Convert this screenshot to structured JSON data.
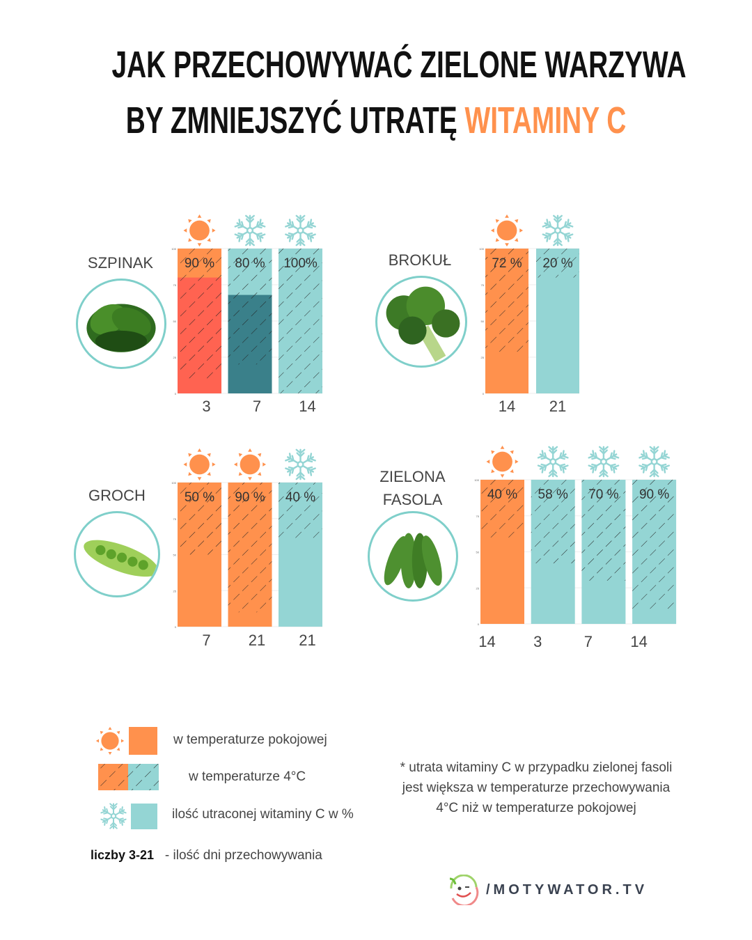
{
  "title": {
    "line1": "JAK PRZECHOWYWAĆ ZIELONE WARZYWA",
    "line2_prefix": "BY ZMNIEJSZYĆ UTRATĘ ",
    "line2_accent": "WITAMINY C"
  },
  "colors": {
    "room_temp": "#ff914d",
    "cold": "#94d5d4",
    "accent": "#ff914d",
    "spinach_room_dark": "#ff6351",
    "spinach_cold_dark": "#3a808a",
    "photo_border": "#7fcfca"
  },
  "chart_data": [
    {
      "type": "bar",
      "name": "SZPINAK",
      "y_ticks": [
        "0",
        "25",
        "50",
        "75",
        "100"
      ],
      "ylim": [
        0,
        100
      ],
      "bars": [
        {
          "days": "3",
          "icon": "sun-icon",
          "storage": "room",
          "loss_label": "90 %",
          "loss": 90,
          "inner_fill_level": 80
        },
        {
          "days": "7",
          "icon": "snowflake-icon",
          "storage": "cold",
          "loss_label": "80 %",
          "loss": 80,
          "inner_fill_level": 68
        },
        {
          "days": "14",
          "icon": "snowflake-icon",
          "storage": "cold",
          "loss_label": "100%",
          "loss": 100
        }
      ]
    },
    {
      "type": "bar",
      "name": "BROKUŁ",
      "y_ticks": [
        "0",
        "25",
        "50",
        "75",
        "100"
      ],
      "ylim": [
        0,
        100
      ],
      "bars": [
        {
          "days": "14",
          "icon": "sun-icon",
          "storage": "room",
          "loss_label": "72 %",
          "loss": 72
        },
        {
          "days": "21",
          "icon": "snowflake-icon",
          "storage": "cold",
          "loss_label": "20 %",
          "loss": 20
        }
      ]
    },
    {
      "type": "bar",
      "name": "GROCH",
      "y_ticks": [
        "0",
        "25",
        "50",
        "75",
        "100"
      ],
      "ylim": [
        0,
        100
      ],
      "bars": [
        {
          "days": "7",
          "icon": "sun-icon",
          "storage": "room",
          "loss_label": "50 %",
          "loss": 50
        },
        {
          "days": "21",
          "icon": "sun-icon",
          "storage": "room",
          "loss_label": "90 %",
          "loss": 90
        },
        {
          "days": "21",
          "icon": "snowflake-icon",
          "storage": "cold",
          "loss_label": "40 %",
          "loss": 40
        }
      ]
    },
    {
      "type": "bar",
      "name": "ZIELONA FASOLA",
      "y_ticks": [
        "0",
        "25",
        "50",
        "75",
        "100"
      ],
      "ylim": [
        0,
        100
      ],
      "bars": [
        {
          "days": "14",
          "icon": "sun-icon",
          "storage": "room",
          "loss_label": "40 %",
          "loss": 40
        },
        {
          "days": "3",
          "icon": "snowflake-icon",
          "storage": "cold",
          "loss_label": "58 %",
          "loss": 58
        },
        {
          "days": "7",
          "icon": "snowflake-icon",
          "storage": "cold",
          "loss_label": "70 %",
          "loss": 70
        },
        {
          "days": "14",
          "icon": "snowflake-icon",
          "storage": "cold",
          "loss_label": "90 %",
          "loss": 90
        }
      ]
    }
  ],
  "vegetables": {
    "szpinak": "SZPINAK",
    "brokul": "BROKUŁ",
    "groch": "GROCH",
    "fasola_line1": "ZIELONA",
    "fasola_line2": "FASOLA"
  },
  "legend": {
    "room": "w temperaturze pokojowej",
    "cold": "w temperaturze 4°C",
    "loss": "ilość utraconej witaminy C w %",
    "days_bold": "liczby 3-21",
    "days_text": "- ilość dni przechowywania"
  },
  "note": "* utrata witaminy C w przypadku zielonej fasoli jest większa w temperaturze przechowywania 4°C niż w temperaturze pokojowej",
  "logo": {
    "text": "/MOTYWATOR.TV"
  }
}
